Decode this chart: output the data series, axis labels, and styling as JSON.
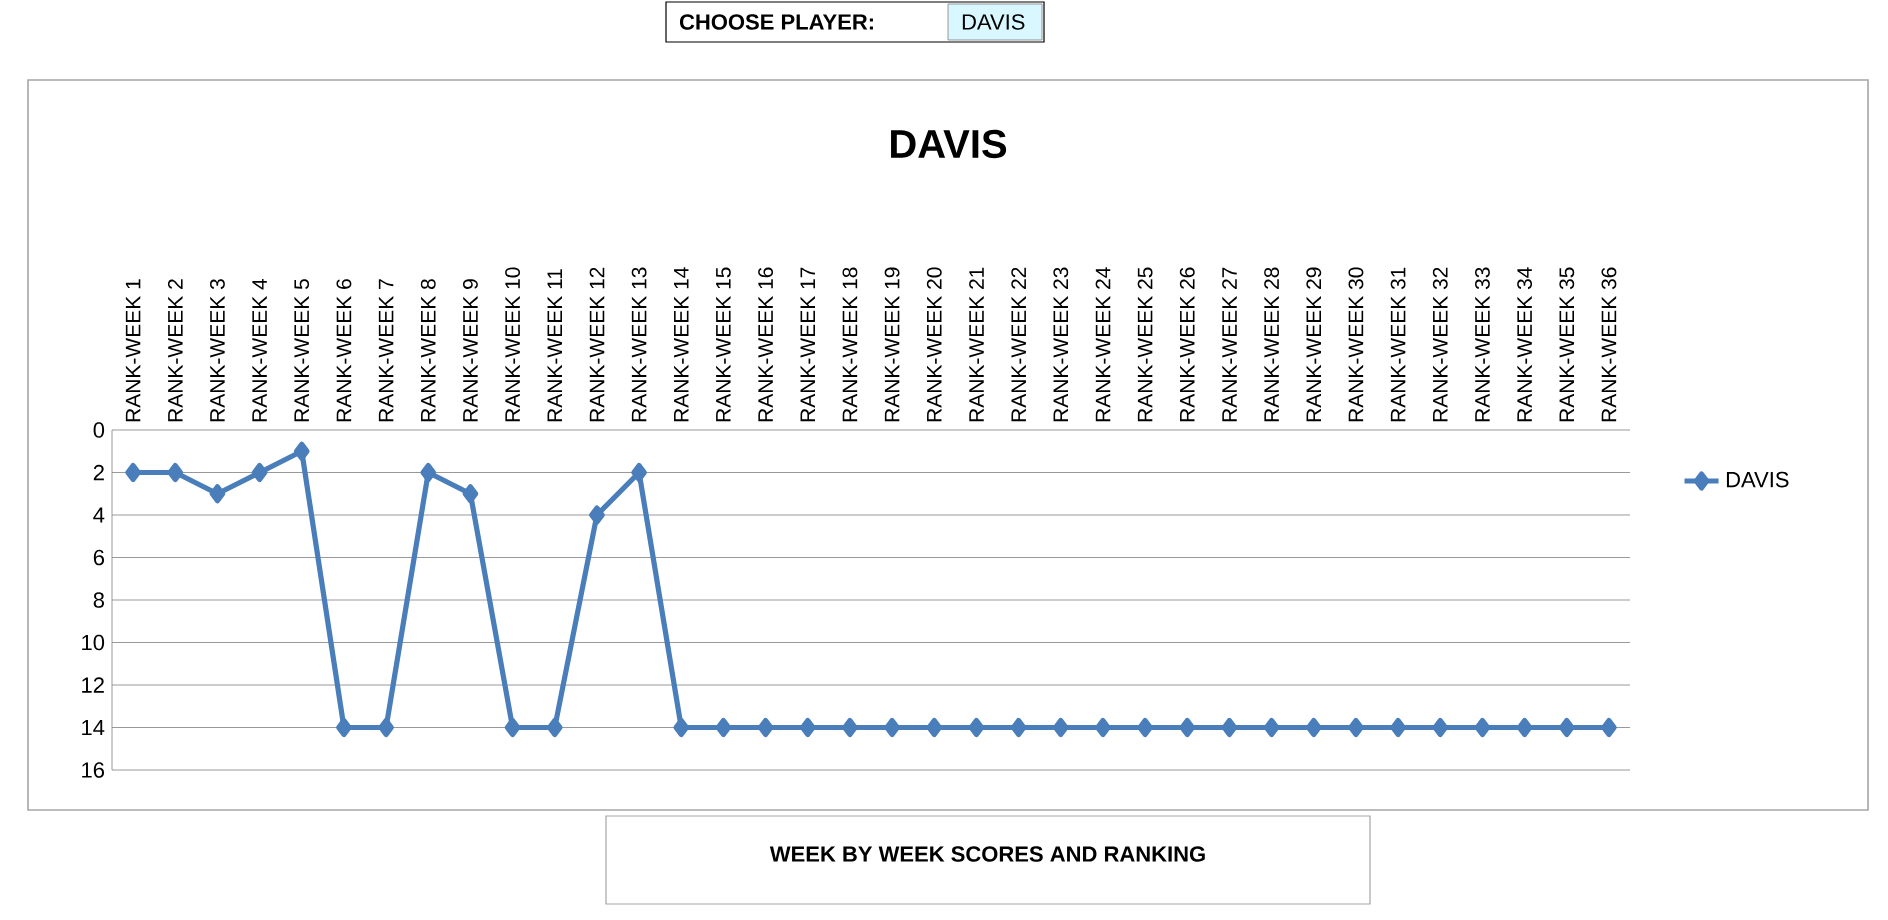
{
  "chart_data": {
    "type": "line",
    "title": "DAVIS",
    "categories": [
      "RANK-WEEK 1",
      "RANK-WEEK 2",
      "RANK-WEEK 3",
      "RANK-WEEK 4",
      "RANK-WEEK 5",
      "RANK-WEEK 6",
      "RANK-WEEK 7",
      "RANK-WEEK 8",
      "RANK-WEEK 9",
      "RANK-WEEK 10",
      "RANK-WEEK 11",
      "RANK-WEEK 12",
      "RANK-WEEK 13",
      "RANK-WEEK 14",
      "RANK-WEEK 15",
      "RANK-WEEK 16",
      "RANK-WEEK 17",
      "RANK-WEEK 18",
      "RANK-WEEK 19",
      "RANK-WEEK 20",
      "RANK-WEEK 21",
      "RANK-WEEK 22",
      "RANK-WEEK 23",
      "RANK-WEEK 24",
      "RANK-WEEK 25",
      "RANK-WEEK 26",
      "RANK-WEEK 27",
      "RANK-WEEK 28",
      "RANK-WEEK 29",
      "RANK-WEEK 30",
      "RANK-WEEK 31",
      "RANK-WEEK 32",
      "RANK-WEEK 33",
      "RANK-WEEK 34",
      "RANK-WEEK 35",
      "RANK-WEEK 36"
    ],
    "series": [
      {
        "name": "DAVIS",
        "color": "#4a7ebb",
        "values": [
          2,
          2,
          3,
          2,
          1,
          14,
          14,
          2,
          3,
          14,
          14,
          4,
          2,
          14,
          14,
          14,
          14,
          14,
          14,
          14,
          14,
          14,
          14,
          14,
          14,
          14,
          14,
          14,
          14,
          14,
          14,
          14,
          14,
          14,
          14,
          14
        ]
      }
    ],
    "ylim": [
      16,
      0
    ],
    "yticks": [
      0,
      2,
      4,
      6,
      8,
      10,
      12,
      14,
      16
    ],
    "grid": "y",
    "legend": "right",
    "marker": "diamond",
    "line_style": "solid",
    "annotations": [
      "CHOOSE PLAYER:",
      "DAVIS",
      "WEEK BY WEEK SCORES AND RANKING"
    ]
  }
}
